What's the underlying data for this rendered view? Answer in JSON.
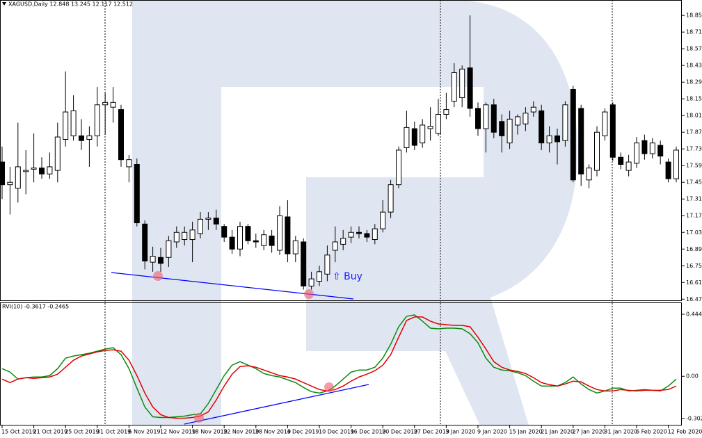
{
  "chart_data": [
    {
      "type": "candlestick",
      "title": "XAGUSD,Daily  12.848 13.245 12.117 12.512",
      "categories": [
        "15 Oct 2019",
        null,
        null,
        null,
        "21 Oct 2019",
        null,
        null,
        null,
        "25 Oct 2019",
        null,
        null,
        null,
        "31 Oct 2019",
        null,
        null,
        null,
        "6 Nov 2019",
        null,
        null,
        null,
        "12 Nov 2019",
        null,
        null,
        null,
        "18 Nov 2019",
        null,
        null,
        null,
        "22 Nov 2019",
        null,
        null,
        null,
        "28 Nov 2019",
        null,
        null,
        null,
        "4 Dec 2019",
        null,
        null,
        null,
        "10 Dec 2019",
        null,
        null,
        null,
        "16 Dec 2019",
        null,
        null,
        null,
        "20 Dec 2019",
        null,
        null,
        null,
        "27 Dec 2019",
        null,
        null,
        null,
        "3 Jan 2020",
        null,
        null,
        null,
        "9 Jan 2020",
        null,
        null,
        null,
        "15 Jan 2020",
        null,
        null,
        null,
        "21 Jan 2020",
        null,
        null,
        null,
        "27 Jan 2020",
        null,
        null,
        null,
        "31 Jan 2020",
        null,
        null,
        null,
        "6 Feb 2020",
        null,
        null,
        null,
        "12 Feb 2020",
        null
      ],
      "open": [
        17.62,
        17.43,
        17.4,
        17.54,
        17.56,
        17.57,
        17.52,
        17.55,
        17.81,
        17.84,
        17.84,
        17.81,
        17.84,
        18.1,
        18.08,
        18.06,
        17.58,
        17.6,
        17.1,
        16.78,
        16.82,
        16.82,
        16.95,
        16.97,
        16.97,
        17.02,
        17.14,
        17.15,
        17.08,
        16.99,
        16.89,
        17.08,
        16.96,
        16.92,
        17.0,
        16.88,
        17.16,
        16.85,
        16.95,
        16.58,
        16.62,
        16.68,
        16.88,
        16.93,
        16.99,
        17.03,
        17.02,
        16.97,
        17.06,
        17.2,
        17.43,
        17.74,
        17.9,
        17.78,
        17.9,
        17.86,
        18.02,
        18.13,
        18.16,
        18.41,
        18.07,
        17.9,
        18.1,
        17.96,
        17.78,
        17.93,
        17.94,
        18.04,
        18.05,
        17.78,
        17.84,
        17.8,
        18.23,
        18.07,
        17.47,
        17.55,
        17.84,
        18.1,
        17.66,
        17.55,
        17.61,
        17.8,
        17.69,
        17.76,
        17.62,
        17.48
      ],
      "high": [
        17.75,
        17.58,
        17.95,
        17.72,
        17.86,
        17.66,
        17.7,
        17.95,
        18.38,
        18.18,
        17.98,
        17.92,
        18.25,
        18.2,
        18.25,
        18.1,
        17.68,
        17.65,
        17.13,
        16.91,
        16.9,
        17.0,
        17.08,
        17.08,
        17.12,
        17.2,
        17.2,
        17.22,
        17.1,
        17.05,
        17.12,
        17.1,
        17.02,
        17.05,
        17.05,
        17.25,
        17.3,
        17.0,
        16.98,
        16.7,
        16.75,
        16.92,
        17.08,
        17.05,
        17.08,
        17.08,
        17.05,
        17.1,
        17.3,
        17.47,
        17.75,
        18.05,
        17.96,
        17.98,
        18.08,
        18.15,
        18.2,
        18.45,
        18.43,
        18.85,
        18.12,
        18.12,
        18.15,
        18.02,
        18.05,
        18.02,
        18.08,
        18.13,
        18.1,
        17.92,
        17.9,
        18.13,
        18.26,
        18.1,
        17.6,
        17.92,
        18.07,
        18.12,
        17.7,
        17.68,
        17.83,
        17.85,
        17.82,
        17.8,
        17.65,
        17.75
      ],
      "low": [
        17.31,
        17.18,
        17.28,
        17.35,
        17.45,
        17.48,
        17.48,
        17.45,
        17.75,
        17.8,
        17.72,
        17.58,
        17.75,
        17.85,
        17.95,
        17.58,
        17.45,
        17.08,
        16.72,
        16.7,
        16.7,
        16.74,
        16.9,
        16.92,
        16.78,
        16.98,
        17.05,
        17.05,
        16.95,
        16.85,
        16.83,
        16.93,
        16.9,
        16.88,
        16.86,
        16.84,
        16.78,
        16.78,
        16.55,
        16.55,
        16.58,
        16.62,
        16.78,
        16.88,
        16.94,
        16.98,
        16.95,
        16.93,
        17.03,
        17.15,
        17.4,
        17.7,
        17.72,
        17.74,
        17.8,
        17.84,
        17.98,
        18.08,
        18.08,
        18.0,
        17.84,
        17.7,
        17.82,
        17.7,
        17.73,
        17.85,
        17.88,
        18.0,
        17.72,
        17.7,
        17.6,
        17.75,
        17.45,
        17.42,
        17.4,
        17.5,
        17.8,
        17.63,
        17.56,
        17.5,
        17.57,
        17.64,
        17.65,
        17.6,
        17.45,
        17.45
      ],
      "close": [
        17.43,
        17.45,
        17.58,
        17.55,
        17.57,
        17.52,
        17.58,
        17.83,
        18.04,
        18.05,
        17.8,
        17.84,
        18.1,
        18.12,
        18.12,
        17.64,
        17.64,
        17.11,
        16.79,
        16.83,
        16.77,
        16.96,
        17.03,
        17.03,
        17.05,
        17.14,
        17.15,
        17.1,
        16.99,
        16.89,
        17.08,
        16.96,
        16.95,
        17.01,
        16.92,
        17.17,
        16.85,
        16.96,
        16.58,
        16.64,
        16.7,
        16.84,
        16.95,
        16.98,
        17.03,
        17.02,
        16.99,
        17.06,
        17.2,
        17.43,
        17.72,
        17.91,
        17.76,
        17.93,
        17.92,
        18.02,
        18.06,
        18.37,
        18.4,
        18.07,
        17.9,
        18.1,
        17.87,
        17.84,
        17.98,
        18.0,
        18.03,
        18.08,
        17.78,
        17.84,
        17.79,
        18.1,
        17.47,
        17.52,
        17.57,
        17.87,
        18.04,
        17.66,
        17.6,
        17.62,
        17.78,
        17.69,
        17.78,
        17.67,
        17.48,
        17.72
      ],
      "up_color": "#ffffff",
      "down_color": "#000000",
      "ylim": [
        16.46,
        18.95
      ],
      "yticks": [
        {
          "value": 18.85,
          "label": "18.850"
        },
        {
          "value": 18.71,
          "label": "18.710"
        },
        {
          "value": 18.57,
          "label": "18.570"
        },
        {
          "value": 18.43,
          "label": "18.430"
        },
        {
          "value": 18.29,
          "label": "18.290"
        },
        {
          "value": 18.15,
          "label": "18.150"
        },
        {
          "value": 18.01,
          "label": "18.010"
        },
        {
          "value": 17.87,
          "label": "17.870"
        },
        {
          "value": 17.73,
          "label": "17.730"
        },
        {
          "value": 17.59,
          "label": "17.590"
        },
        {
          "value": 17.45,
          "label": "17.450"
        },
        {
          "value": 17.31,
          "label": "17.310"
        },
        {
          "value": 17.17,
          "label": "17.170"
        },
        {
          "value": 17.03,
          "label": "17.030"
        },
        {
          "value": 16.89,
          "label": "16.890"
        },
        {
          "value": 16.75,
          "label": "16.750"
        },
        {
          "value": 16.61,
          "label": "16.610"
        },
        {
          "value": 16.47,
          "label": "16.470"
        }
      ],
      "annotations": [
        "⇧ Buy"
      ]
    },
    {
      "type": "line",
      "title": "RVI(10) -0.3617 -0.2465",
      "series": [
        {
          "color": "#0a8a0a",
          "values": [
            0.055,
            0.03,
            -0.02,
            -0.01,
            -0.005,
            -0.005,
            0.005,
            0.055,
            0.13,
            0.145,
            0.155,
            0.165,
            0.18,
            0.195,
            0.205,
            0.155,
            0.055,
            -0.085,
            -0.22,
            -0.29,
            -0.295,
            -0.295,
            -0.29,
            -0.285,
            -0.275,
            -0.27,
            -0.195,
            -0.095,
            0.005,
            0.08,
            0.105,
            0.08,
            0.055,
            0.02,
            0.005,
            -0.005,
            -0.025,
            -0.045,
            -0.08,
            -0.11,
            -0.12,
            -0.105,
            -0.07,
            -0.02,
            0.03,
            0.045,
            0.045,
            0.065,
            0.13,
            0.23,
            0.355,
            0.43,
            0.44,
            0.395,
            0.345,
            0.34,
            0.345,
            0.345,
            0.34,
            0.305,
            0.24,
            0.13,
            0.065,
            0.045,
            0.04,
            0.025,
            0.005,
            -0.035,
            -0.07,
            -0.07,
            -0.07,
            -0.045,
            -0.005,
            -0.055,
            -0.095,
            -0.12,
            -0.105,
            -0.085,
            -0.085,
            -0.105,
            -0.1,
            -0.095,
            -0.1,
            -0.105,
            -0.07,
            -0.02
          ]
        },
        {
          "color": "#e00000",
          "values": [
            -0.02,
            -0.045,
            -0.02,
            -0.01,
            -0.015,
            -0.01,
            -0.005,
            0.015,
            0.065,
            0.115,
            0.145,
            0.16,
            0.175,
            0.185,
            0.19,
            0.18,
            0.115,
            0.005,
            -0.12,
            -0.22,
            -0.275,
            -0.295,
            -0.3,
            -0.3,
            -0.295,
            -0.285,
            -0.255,
            -0.17,
            -0.07,
            0.015,
            0.07,
            0.075,
            0.065,
            0.045,
            0.025,
            0.005,
            -0.005,
            -0.02,
            -0.045,
            -0.07,
            -0.095,
            -0.105,
            -0.095,
            -0.07,
            -0.035,
            -0.005,
            0.015,
            0.04,
            0.08,
            0.155,
            0.28,
            0.4,
            0.425,
            0.425,
            0.395,
            0.375,
            0.37,
            0.365,
            0.365,
            0.355,
            0.28,
            0.195,
            0.105,
            0.065,
            0.045,
            0.035,
            0.02,
            -0.01,
            -0.045,
            -0.06,
            -0.07,
            -0.055,
            -0.035,
            -0.04,
            -0.07,
            -0.095,
            -0.105,
            -0.105,
            -0.095,
            -0.1,
            -0.105,
            -0.1,
            -0.1,
            -0.1,
            -0.095,
            -0.07
          ]
        }
      ],
      "ylim": [
        -0.3026,
        0.4445
      ],
      "yticks": [
        0.4445,
        {
          "value": 0,
          "label": "0.00"
        },
        -0.3026
      ]
    }
  ]
}
